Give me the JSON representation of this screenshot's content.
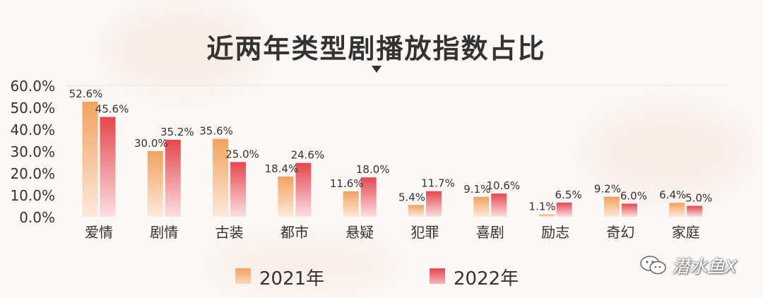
{
  "chart_data": {
    "type": "bar",
    "title": "近两年类型剧播放指数占比",
    "categories": [
      "爱情",
      "剧情",
      "古装",
      "都市",
      "悬疑",
      "犯罪",
      "喜剧",
      "励志",
      "奇幻",
      "家庭"
    ],
    "series": [
      {
        "name": "2021年",
        "values": [
          52.6,
          30.0,
          35.6,
          18.4,
          11.6,
          5.4,
          9.1,
          1.1,
          9.2,
          6.4
        ],
        "labels": [
          "52.6%",
          "30.0%",
          "35.6%",
          "18.4%",
          "11.6%",
          "5.4%",
          "9.1%",
          "1.1%",
          "9.2%",
          "6.4%"
        ],
        "color_top": "#f2a25e",
        "color_bottom": "#fde9dc"
      },
      {
        "name": "2022年",
        "values": [
          45.6,
          35.2,
          25.0,
          24.6,
          18.0,
          11.7,
          10.6,
          6.5,
          6.0,
          5.0
        ],
        "labels": [
          "45.6%",
          "35.2%",
          "25.0%",
          "24.6%",
          "18.0%",
          "11.7%",
          "10.6%",
          "6.5%",
          "6.0%",
          "5.0%"
        ],
        "color_top": "#e5464e",
        "color_bottom": "#fbe0e2"
      }
    ],
    "ylim": [
      0,
      60
    ],
    "yticks": [
      "0.0%",
      "10.0%",
      "20.0%",
      "30.0%",
      "40.0%",
      "50.0%",
      "60.0%"
    ],
    "ytick_values": [
      0,
      10,
      20,
      30,
      40,
      50,
      60
    ],
    "xlabel": "",
    "ylabel": "",
    "grid": false,
    "legend_position": "bottom-center"
  },
  "watermark": {
    "text": "潜水鱼X",
    "icon": "wechat-icon"
  }
}
